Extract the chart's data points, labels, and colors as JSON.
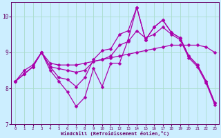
{
  "xlabel": "Windchill (Refroidissement éolien,°C)",
  "bg_color": "#cceeff",
  "grid_color": "#aaddcc",
  "line_color": "#aa00aa",
  "xlim": [
    -0.5,
    23.5
  ],
  "ylim": [
    7.0,
    10.4
  ],
  "xticks": [
    0,
    1,
    2,
    3,
    4,
    5,
    6,
    7,
    8,
    9,
    10,
    11,
    12,
    13,
    14,
    15,
    16,
    17,
    18,
    19,
    20,
    21,
    22,
    23
  ],
  "yticks": [
    7,
    8,
    9,
    10
  ],
  "series": [
    [
      8.2,
      8.4,
      8.6,
      9.0,
      8.6,
      8.3,
      8.25,
      8.05,
      8.3,
      8.8,
      9.05,
      9.1,
      9.5,
      9.6,
      10.25,
      9.35,
      9.7,
      9.9,
      9.55,
      9.4,
      8.9,
      8.65,
      8.2,
      7.6
    ],
    [
      8.2,
      8.4,
      8.6,
      9.0,
      8.5,
      8.2,
      7.9,
      7.5,
      7.75,
      8.55,
      8.05,
      8.7,
      8.7,
      9.35,
      10.25,
      9.35,
      9.7,
      9.9,
      9.55,
      9.4,
      8.9,
      8.65,
      8.2,
      7.6
    ],
    [
      8.2,
      8.5,
      8.65,
      9.0,
      8.7,
      8.65,
      8.65,
      8.65,
      8.7,
      8.75,
      8.8,
      8.85,
      8.9,
      8.95,
      9.0,
      9.05,
      9.1,
      9.15,
      9.2,
      9.2,
      9.2,
      9.2,
      9.15,
      9.0
    ],
    [
      8.2,
      8.4,
      8.6,
      9.0,
      8.6,
      8.55,
      8.5,
      8.45,
      8.5,
      8.75,
      8.8,
      8.9,
      9.2,
      9.3,
      9.6,
      9.4,
      9.5,
      9.7,
      9.5,
      9.35,
      8.85,
      8.6,
      8.15,
      7.55
    ]
  ],
  "markersize": 2.5,
  "linewidth": 0.9
}
